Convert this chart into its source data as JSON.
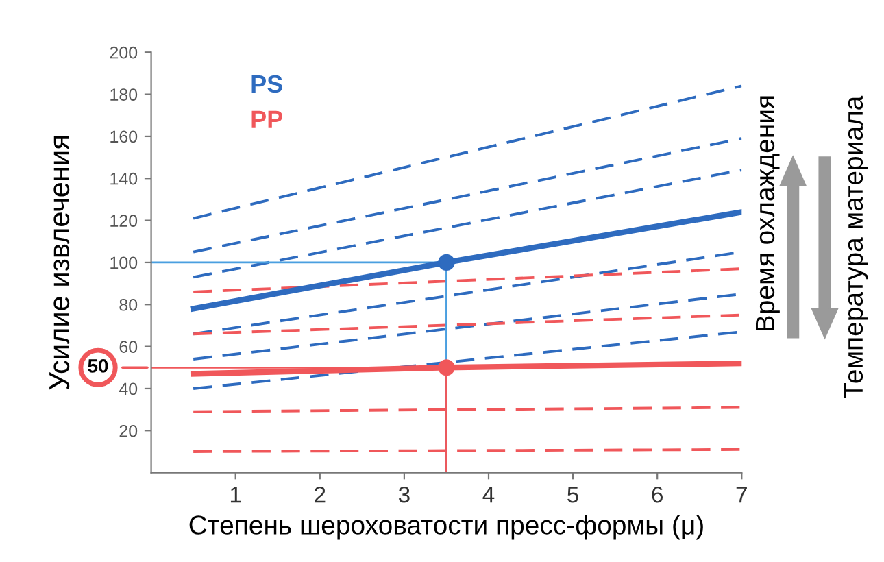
{
  "chart_data": {
    "type": "line",
    "xlabel": "Степень шероховатости пресс-формы (μ)",
    "ylabel": "Усилие извлечения",
    "xlim": [
      0,
      7
    ],
    "xticks": [
      1,
      2,
      3,
      4,
      5,
      6,
      7
    ],
    "ylim": [
      0,
      200
    ],
    "yticks": [
      20,
      40,
      60,
      80,
      100,
      120,
      140,
      160,
      180,
      200
    ],
    "grid": false,
    "legend": "top left",
    "annotations": [
      "Время охлаждения",
      "Температура материала",
      "50"
    ],
    "series": [
      {
        "x": [
          0.5,
          7
        ],
        "values": [
          121,
          184
        ],
        "color": "#2e6bbf",
        "line_style": "dashed"
      },
      {
        "x": [
          0.5,
          7
        ],
        "values": [
          105,
          159
        ],
        "color": "#2e6bbf",
        "line_style": "dashed"
      },
      {
        "x": [
          0.5,
          7
        ],
        "values": [
          93,
          144
        ],
        "color": "#2e6bbf",
        "line_style": "dashed"
      },
      {
        "x": [
          0.5,
          7
        ],
        "values": [
          66,
          105
        ],
        "color": "#2e6bbf",
        "line_style": "dashed"
      },
      {
        "x": [
          0.5,
          7
        ],
        "values": [
          54,
          85
        ],
        "color": "#2e6bbf",
        "line_style": "dashed"
      },
      {
        "x": [
          0.5,
          7
        ],
        "values": [
          40,
          67
        ],
        "color": "#2e6bbf",
        "line_style": "dashed"
      },
      {
        "x": [
          0.5,
          7
        ],
        "values": [
          86,
          97
        ],
        "color": "#f0575a",
        "line_style": "dashed"
      },
      {
        "x": [
          0.5,
          7
        ],
        "values": [
          66,
          75
        ],
        "color": "#f0575a",
        "line_style": "dashed"
      },
      {
        "x": [
          0.5,
          7
        ],
        "values": [
          29,
          31
        ],
        "color": "#f0575a",
        "line_style": "dashed"
      },
      {
        "x": [
          0.5,
          7
        ],
        "values": [
          10,
          11
        ],
        "color": "#f0575a",
        "line_style": "dashed"
      },
      {
        "x": [
          0,
          3.5,
          3.5
        ],
        "values": [
          100,
          100,
          0
        ],
        "color": "#4a9fe0",
        "line_style": "solid"
      },
      {
        "x": [
          0,
          3.5,
          3.5
        ],
        "values": [
          50,
          50,
          0
        ],
        "color": "#f0575a",
        "line_style": "solid"
      },
      {
        "name": "PS",
        "x": [
          0.5,
          3.5,
          7
        ],
        "values": [
          78,
          100,
          124
        ],
        "color": "#2e6bbf",
        "line_style": "solid"
      },
      {
        "name": "PP",
        "x": [
          0.5,
          3.5,
          7
        ],
        "values": [
          47,
          50,
          52
        ],
        "color": "#f0575a",
        "line_style": "solid"
      },
      {
        "type": "scatter",
        "x": [
          3.5
        ],
        "values": [
          100
        ],
        "color": "#2e6bbf",
        "marker": "circle"
      },
      {
        "type": "scatter",
        "x": [
          3.5
        ],
        "values": [
          50
        ],
        "color": "#f0575a",
        "marker": "circle"
      }
    ]
  }
}
